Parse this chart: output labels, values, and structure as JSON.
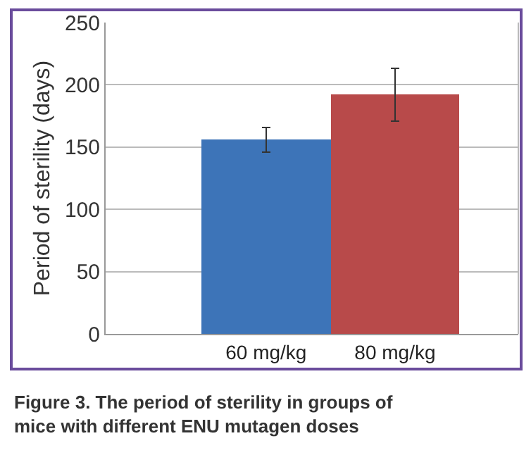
{
  "chart_data": {
    "type": "bar",
    "categories": [
      "60 mg/kg",
      "80 mg/kg"
    ],
    "values": [
      156,
      192
    ],
    "errors": [
      10,
      21
    ],
    "colors": [
      "#3d74b8",
      "#b84a4a"
    ],
    "ylabel": "Period of sterility (days)",
    "ylim": [
      0,
      250
    ],
    "yticks": [
      0,
      50,
      100,
      150,
      200,
      250
    ],
    "grid": "y",
    "annotations": [
      "Figure 3. The period of sterility in groups of mice with different ENU mutagen doses"
    ]
  }
}
